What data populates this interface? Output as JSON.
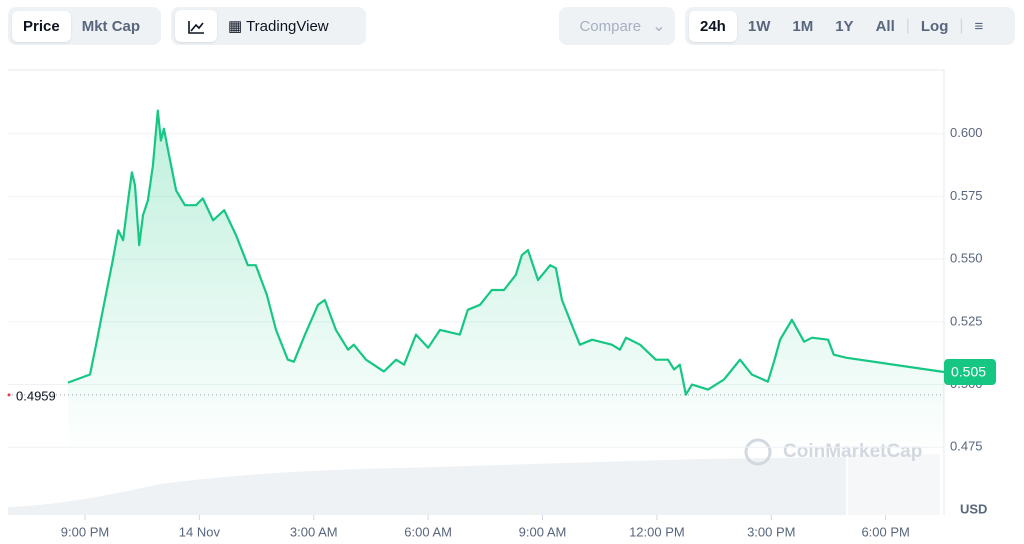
{
  "ui": {
    "tabs": [
      "Price",
      "Mkt Cap"
    ],
    "chart_view": "TradingView",
    "compare": "Compare",
    "ranges": [
      "24h",
      "1W",
      "1M",
      "1Y",
      "All"
    ],
    "log": "Log",
    "watermark": "CoinMarketCap",
    "currency": "USD"
  },
  "chart_data": {
    "type": "line",
    "color": "#16c784",
    "x": [
      -0.45,
      0.13,
      0.29,
      0.47,
      0.73,
      0.87,
      1.0,
      1.13,
      1.23,
      1.31,
      1.42,
      1.52,
      1.65,
      1.78,
      1.91,
      1.99,
      2.07,
      2.18,
      2.39,
      2.62,
      2.91,
      3.09,
      3.36,
      3.65,
      3.96,
      4.27,
      4.48,
      4.77,
      5.01,
      5.32,
      5.48,
      5.77,
      6.11,
      6.29,
      6.58,
      6.9,
      7.05,
      7.37,
      7.84,
      8.16,
      8.37,
      8.68,
      9.0,
      9.31,
      9.83,
      10.04,
      10.36,
      10.67,
      10.99,
      11.3,
      11.46,
      11.62,
      11.88,
      12.2,
      12.35,
      12.51,
      12.82,
      12.98,
      13.3,
      13.82,
      14.03,
      14.19,
      14.56,
      14.97,
      15.29,
      15.45,
      15.6,
      15.76,
      15.92,
      16.34,
      16.76,
      17.18,
      17.49,
      17.91,
      18.07,
      18.23,
      18.54,
      18.86,
      19.07,
      19.49,
      19.64,
      19.96,
      22.53
    ],
    "values": [
      0.5008,
      0.504,
      0.5159,
      0.5298,
      0.5496,
      0.5615,
      0.5576,
      0.5734,
      0.5846,
      0.5794,
      0.5556,
      0.5675,
      0.5734,
      0.5873,
      0.6092,
      0.5973,
      0.602,
      0.5933,
      0.5774,
      0.5715,
      0.5715,
      0.5742,
      0.5655,
      0.5695,
      0.5596,
      0.5476,
      0.5476,
      0.5357,
      0.5218,
      0.5099,
      0.5091,
      0.5199,
      0.5318,
      0.5337,
      0.5218,
      0.5139,
      0.5159,
      0.5099,
      0.5052,
      0.5099,
      0.5079,
      0.5199,
      0.5147,
      0.5218,
      0.5199,
      0.5298,
      0.5318,
      0.5377,
      0.5377,
      0.5437,
      0.5516,
      0.5536,
      0.5417,
      0.5476,
      0.5464,
      0.5337,
      0.5218,
      0.5159,
      0.5179,
      0.5159,
      0.5139,
      0.5187,
      0.5159,
      0.5099,
      0.5099,
      0.506,
      0.5079,
      0.496,
      0.5,
      0.498,
      0.502,
      0.5099,
      0.504,
      0.5012,
      0.5091,
      0.5179,
      0.5258,
      0.5171,
      0.5187,
      0.5179,
      0.5119,
      0.5107,
      0.505
    ],
    "xlim": [
      -2.02,
      22.53
    ],
    "xticks": [
      {
        "value": 0,
        "label": "9:00 PM"
      },
      {
        "value": 3,
        "label": "14 Nov"
      },
      {
        "value": 6,
        "label": "3:00 AM"
      },
      {
        "value": 9,
        "label": "6:00 AM"
      },
      {
        "value": 12,
        "label": "9:00 AM"
      },
      {
        "value": 15,
        "label": "12:00 PM"
      },
      {
        "value": 18,
        "label": "3:00 PM"
      },
      {
        "value": 21,
        "label": "6:00 PM"
      }
    ],
    "ylim": [
      0.448,
      0.6254
    ],
    "yticks": [
      0.475,
      {
        "value": 0.5,
        "label": "0.500"
      },
      0.525,
      {
        "value": 0.55,
        "label": "0.550"
      },
      0.575,
      {
        "value": 0.6,
        "label": "0.600"
      }
    ],
    "grid": true,
    "reference_line": 0.4959,
    "current_price": 0.505
  }
}
